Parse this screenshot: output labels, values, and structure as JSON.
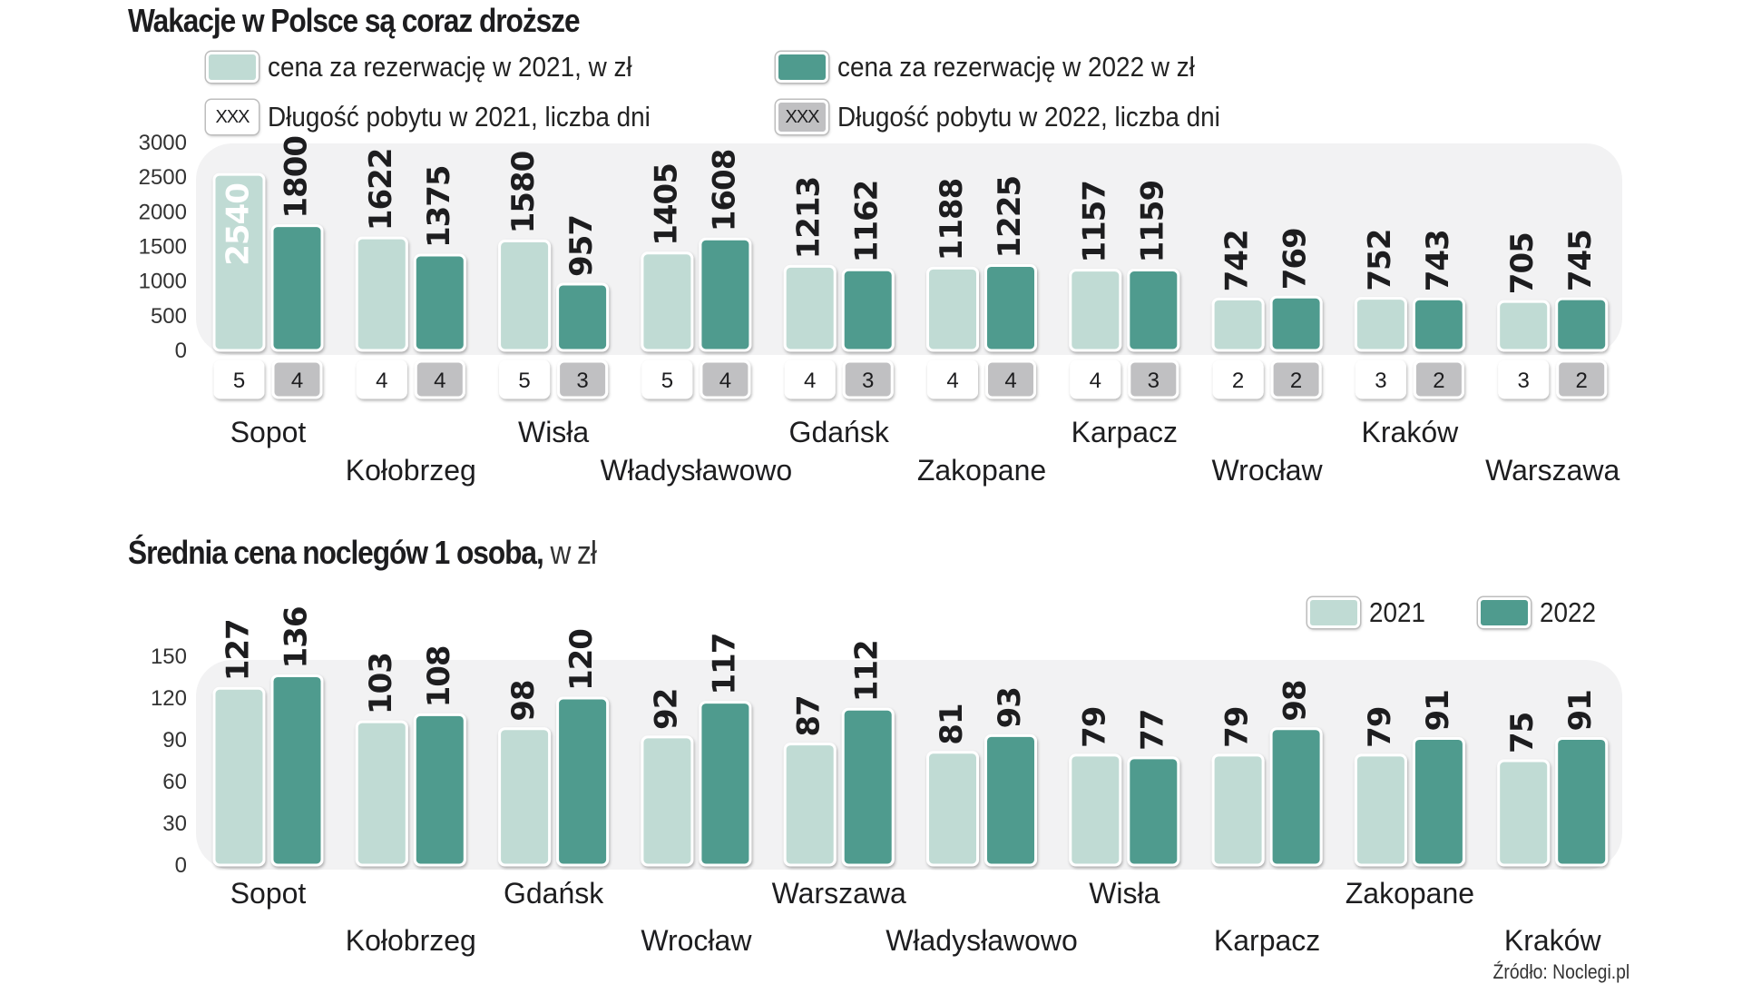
{
  "colors": {
    "y2021": "#c0dbd4",
    "y2022": "#4f9b8e",
    "panel": "#f2f2f3",
    "days2021": "#ffffff",
    "days2022": "#c0c0c2",
    "text": "#1d1d1f"
  },
  "source": "Źródło: Noclegi.pl",
  "chart_data": [
    {
      "type": "bar",
      "title": "Wakacje w Polsce są coraz droższe",
      "legend": {
        "price_2021": "cena za rezerwację w 2021, w zł",
        "price_2022": "cena za rezerwację w 2022 w zł",
        "days_2021": "Długość pobytu w 2021, liczba dni",
        "days_2022": "Długość pobytu w 2022, liczba dni",
        "days_placeholder": "XXX",
        "placement": "top"
      },
      "xlabel": "",
      "ylabel": "",
      "ylim": [
        0,
        3000
      ],
      "yticks": [
        0,
        500,
        1000,
        1500,
        2000,
        2500,
        3000
      ],
      "grid": false,
      "categories": [
        "Sopot",
        "Kołobrzeg",
        "Wisła",
        "Władysławowo",
        "Gdańsk",
        "Zakopane",
        "Karpacz",
        "Wrocław",
        "Kraków",
        "Warszawa"
      ],
      "series": [
        {
          "name": "cena za rezerwację w 2021, w zł",
          "values": [
            2540,
            1622,
            1580,
            1405,
            1213,
            1188,
            1157,
            742,
            752,
            705
          ]
        },
        {
          "name": "cena za rezerwację w 2022 w zł",
          "values": [
            1800,
            1375,
            957,
            1608,
            1162,
            1225,
            1159,
            769,
            743,
            745
          ]
        }
      ],
      "days": [
        {
          "name": "Długość pobytu w 2021, liczba dni",
          "values": [
            5,
            4,
            5,
            5,
            4,
            4,
            4,
            2,
            3,
            3
          ]
        },
        {
          "name": "Długość pobytu w 2022, liczba dni",
          "values": [
            4,
            4,
            3,
            4,
            3,
            4,
            3,
            2,
            2,
            2
          ]
        }
      ]
    },
    {
      "type": "bar",
      "title": "Średnia cena noclegów 1 osoba,",
      "title_suffix": "w zł",
      "legend": {
        "y2021": "2021",
        "y2022": "2022",
        "placement": "top-right"
      },
      "xlabel": "",
      "ylabel": "",
      "ylim": [
        0,
        150
      ],
      "yticks": [
        0,
        30,
        60,
        90,
        120,
        150
      ],
      "grid": false,
      "categories": [
        "Sopot",
        "Kołobrzeg",
        "Gdańsk",
        "Wrocław",
        "Warszawa",
        "Władysławowo",
        "Wisła",
        "Karpacz",
        "Zakopane",
        "Kraków"
      ],
      "series": [
        {
          "name": "2021",
          "values": [
            127,
            103,
            98,
            92,
            87,
            81,
            79,
            79,
            79,
            75
          ]
        },
        {
          "name": "2022",
          "values": [
            136,
            108,
            120,
            117,
            112,
            93,
            77,
            98,
            91,
            91
          ]
        }
      ]
    }
  ]
}
